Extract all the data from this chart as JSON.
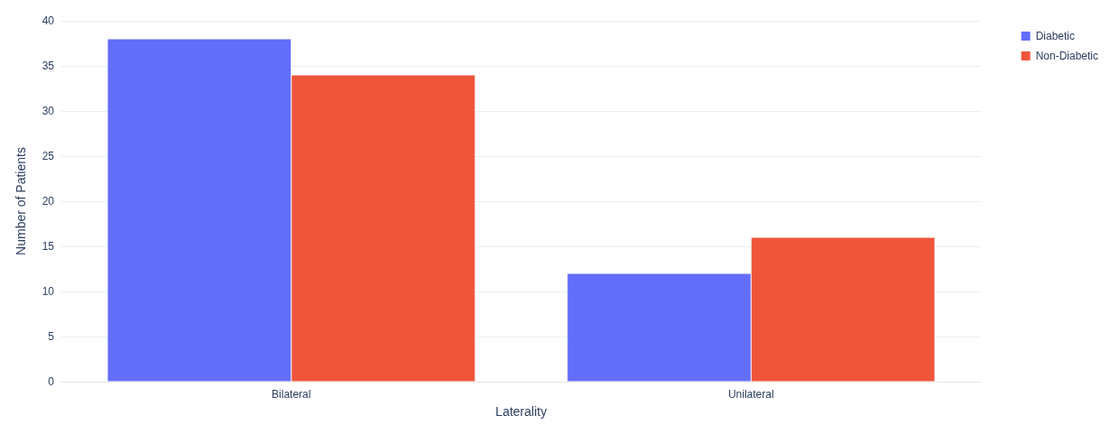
{
  "chart_data": {
    "type": "bar",
    "xlabel": "Laterality",
    "ylabel": "Number of Patients",
    "categories": [
      "Bilateral",
      "Unilateral"
    ],
    "series": [
      {
        "name": "Diabetic",
        "color": "#636efa",
        "values": [
          38,
          12
        ]
      },
      {
        "name": "Non-Diabetic",
        "color": "#ef553b",
        "values": [
          34,
          16
        ]
      }
    ],
    "ylim": [
      0,
      40
    ],
    "yticks": [
      0,
      5,
      10,
      15,
      20,
      25,
      30,
      35,
      40
    ],
    "grid": "y",
    "legend": "top right"
  }
}
